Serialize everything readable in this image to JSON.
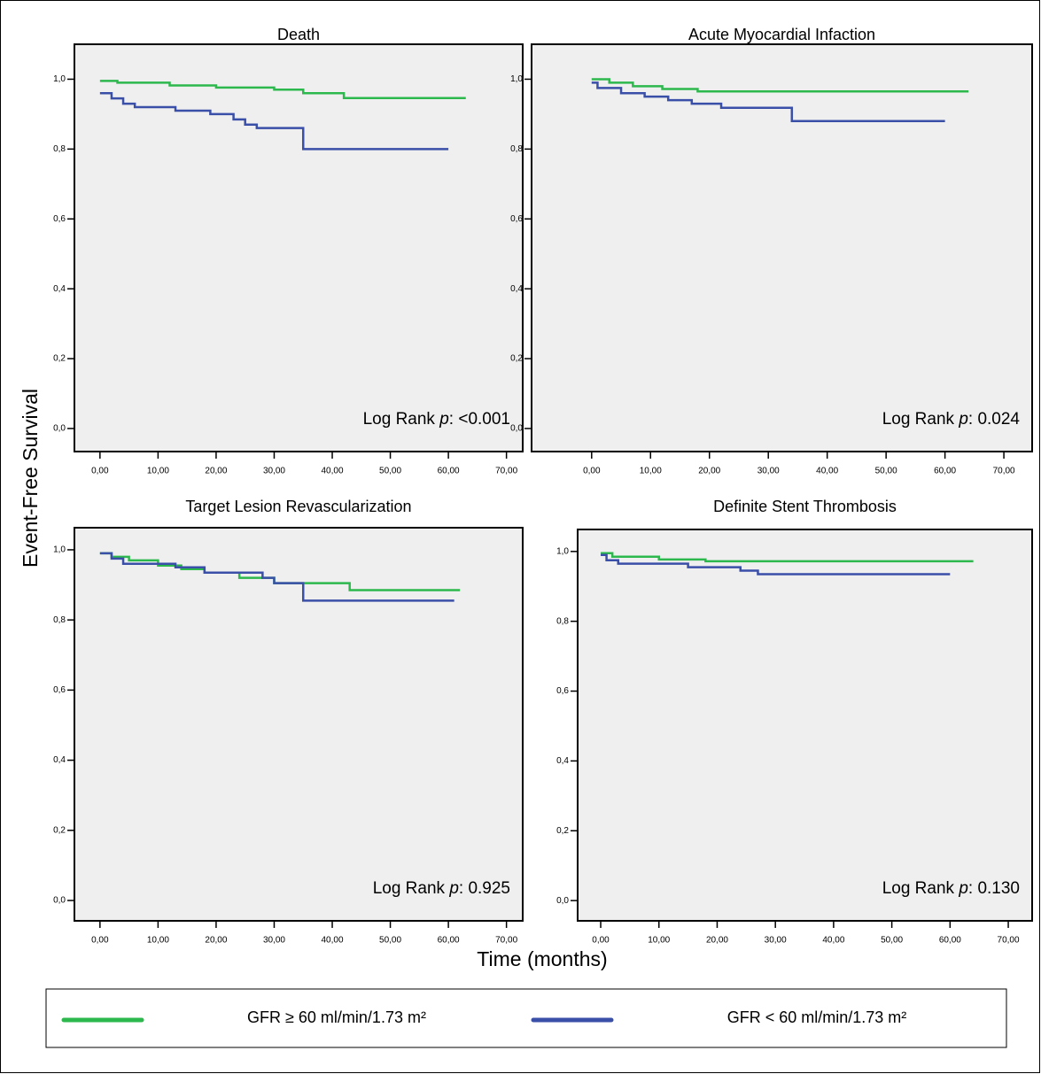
{
  "ylabel": "Event-Free Survival",
  "xlabel": "Time (months)",
  "chart_data": [
    {
      "type": "line",
      "title": "Death",
      "annotation": [
        "Log Rank ",
        "p",
        ": <0.001"
      ],
      "xlim": [
        -4.4,
        72.8
      ],
      "ylim": [
        -0.066,
        1.1
      ],
      "xticks": [
        {
          "value": 0,
          "label": "0,00"
        },
        {
          "value": 10,
          "label": "10,00"
        },
        {
          "value": 20,
          "label": "20,00"
        },
        {
          "value": 30,
          "label": "30,00"
        },
        {
          "value": 40,
          "label": "40,00"
        },
        {
          "value": 50,
          "label": "50,00"
        },
        {
          "value": 60,
          "label": "60,00"
        },
        {
          "value": 70,
          "label": "70,00"
        }
      ],
      "yticks": [
        {
          "value": 0,
          "label": "0,0"
        },
        {
          "value": 0.2,
          "label": "0,2"
        },
        {
          "value": 0.4,
          "label": "0,4"
        },
        {
          "value": 0.6,
          "label": "0,6"
        },
        {
          "value": 0.8,
          "label": "0,8"
        },
        {
          "value": 1,
          "label": "1,0"
        }
      ],
      "series": [
        {
          "name": "GFR ≥ 60 ml/min/1.73 m²",
          "color": "#2db84d",
          "x": [
            0,
            3,
            3,
            12,
            12,
            20,
            20,
            30,
            30,
            35,
            35,
            42,
            42,
            63
          ],
          "values": [
            0.995,
            0.995,
            0.99,
            0.99,
            0.982,
            0.982,
            0.976,
            0.976,
            0.97,
            0.97,
            0.96,
            0.96,
            0.946,
            0.946
          ]
        },
        {
          "name": "GFR < 60 ml/min/1.73 m²",
          "color": "#3a4fa8",
          "x": [
            0,
            2,
            2,
            4,
            4,
            6,
            6,
            13,
            13,
            19,
            19,
            23,
            23,
            25,
            25,
            27,
            27,
            35,
            35,
            60
          ],
          "values": [
            0.96,
            0.96,
            0.945,
            0.945,
            0.93,
            0.93,
            0.92,
            0.92,
            0.91,
            0.91,
            0.9,
            0.9,
            0.885,
            0.885,
            0.87,
            0.87,
            0.86,
            0.86,
            0.8,
            0.8
          ]
        }
      ]
    },
    {
      "type": "line",
      "title": "Acute Myocardial Infaction",
      "annotation": [
        "Log Rank ",
        "p",
        ": 0.024"
      ],
      "xlim": [
        -10.2,
        74.8
      ],
      "ylim": [
        -0.066,
        1.1
      ],
      "xticks": [
        {
          "value": 0,
          "label": "0,00"
        },
        {
          "value": 10,
          "label": "10,00"
        },
        {
          "value": 20,
          "label": "20,00"
        },
        {
          "value": 30,
          "label": "30,00"
        },
        {
          "value": 40,
          "label": "40,00"
        },
        {
          "value": 50,
          "label": "50,00"
        },
        {
          "value": 60,
          "label": "60,00"
        },
        {
          "value": 70,
          "label": "70,00"
        }
      ],
      "yticks": [
        {
          "value": 0,
          "label": "0,0"
        },
        {
          "value": 0.2,
          "label": "0,2"
        },
        {
          "value": 0.4,
          "label": "0,4"
        },
        {
          "value": 0.6,
          "label": "0,6"
        },
        {
          "value": 0.8,
          "label": "0,8"
        },
        {
          "value": 1,
          "label": "1,0"
        }
      ],
      "series": [
        {
          "color": "#2db84d",
          "x": [
            0,
            3,
            3,
            7,
            7,
            12,
            12,
            18,
            18,
            64
          ],
          "values": [
            1,
            1,
            0.99,
            0.99,
            0.98,
            0.98,
            0.972,
            0.972,
            0.965,
            0.965
          ]
        },
        {
          "color": "#3a4fa8",
          "x": [
            0,
            1,
            1,
            5,
            5,
            9,
            9,
            13,
            13,
            17,
            17,
            22,
            22,
            34,
            34,
            60
          ],
          "values": [
            0.99,
            0.99,
            0.975,
            0.975,
            0.96,
            0.96,
            0.95,
            0.95,
            0.94,
            0.94,
            0.93,
            0.93,
            0.918,
            0.918,
            0.88,
            0.88
          ]
        }
      ]
    },
    {
      "type": "line",
      "title": "Target Lesion Revascularization",
      "annotation": [
        "Log Rank ",
        "p",
        ": 0.925"
      ],
      "xlim": [
        -4.4,
        72.8
      ],
      "ylim": [
        -0.058,
        1.063
      ],
      "xticks": [
        {
          "value": 0,
          "label": "0,00"
        },
        {
          "value": 10,
          "label": "10,00"
        },
        {
          "value": 20,
          "label": "20,00"
        },
        {
          "value": 30,
          "label": "30,00"
        },
        {
          "value": 40,
          "label": "40,00"
        },
        {
          "value": 50,
          "label": "50,00"
        },
        {
          "value": 60,
          "label": "60,00"
        },
        {
          "value": 70,
          "label": "70,00"
        }
      ],
      "yticks": [
        {
          "value": 0,
          "label": "0,0"
        },
        {
          "value": 0.2,
          "label": "0,2"
        },
        {
          "value": 0.4,
          "label": "0,4"
        },
        {
          "value": 0.6,
          "label": "0,6"
        },
        {
          "value": 0.8,
          "label": "0,8"
        },
        {
          "value": 1,
          "label": "1,0"
        }
      ],
      "series": [
        {
          "color": "#2db84d",
          "x": [
            0,
            2,
            2,
            5,
            5,
            10,
            10,
            14,
            14,
            18,
            18,
            24,
            24,
            30,
            30,
            43,
            43,
            62
          ],
          "values": [
            0.99,
            0.99,
            0.98,
            0.98,
            0.97,
            0.97,
            0.955,
            0.955,
            0.945,
            0.945,
            0.935,
            0.935,
            0.92,
            0.92,
            0.905,
            0.905,
            0.885,
            0.885
          ]
        },
        {
          "color": "#3a4fa8",
          "x": [
            0,
            2,
            2,
            4,
            4,
            13,
            13,
            18,
            18,
            28,
            28,
            30,
            30,
            35,
            35,
            61
          ],
          "values": [
            0.99,
            0.99,
            0.975,
            0.975,
            0.96,
            0.96,
            0.95,
            0.95,
            0.935,
            0.935,
            0.92,
            0.92,
            0.905,
            0.905,
            0.855,
            0.855
          ]
        }
      ]
    },
    {
      "type": "line",
      "title": "Definite Stent Thrombosis",
      "annotation": [
        "Log Rank ",
        "p",
        ": 0.130"
      ],
      "xlim": [
        -3.96,
        74.1
      ],
      "ylim": [
        -0.058,
        1.063
      ],
      "xticks": [
        {
          "value": 0,
          "label": "0,00"
        },
        {
          "value": 10,
          "label": "10,00"
        },
        {
          "value": 20,
          "label": "20,00"
        },
        {
          "value": 30,
          "label": "30,00"
        },
        {
          "value": 40,
          "label": "40,00"
        },
        {
          "value": 50,
          "label": "50,00"
        },
        {
          "value": 60,
          "label": "60,00"
        },
        {
          "value": 70,
          "label": "70,00"
        }
      ],
      "yticks": [
        {
          "value": 0,
          "label": "0,0"
        },
        {
          "value": 0.2,
          "label": "0,2"
        },
        {
          "value": 0.4,
          "label": "0,4"
        },
        {
          "value": 0.6,
          "label": "0,6"
        },
        {
          "value": 0.8,
          "label": "0,8"
        },
        {
          "value": 1,
          "label": "1,0"
        }
      ],
      "series": [
        {
          "color": "#2db84d",
          "x": [
            0,
            2,
            2,
            10,
            10,
            18,
            18,
            64
          ],
          "values": [
            0.995,
            0.995,
            0.985,
            0.985,
            0.977,
            0.977,
            0.972,
            0.972
          ]
        },
        {
          "color": "#3a4fa8",
          "x": [
            0,
            1,
            1,
            3,
            3,
            15,
            15,
            24,
            24,
            27,
            27,
            60
          ],
          "values": [
            0.99,
            0.99,
            0.975,
            0.975,
            0.965,
            0.965,
            0.955,
            0.955,
            0.945,
            0.945,
            0.935,
            0.935
          ]
        }
      ]
    }
  ]
}
